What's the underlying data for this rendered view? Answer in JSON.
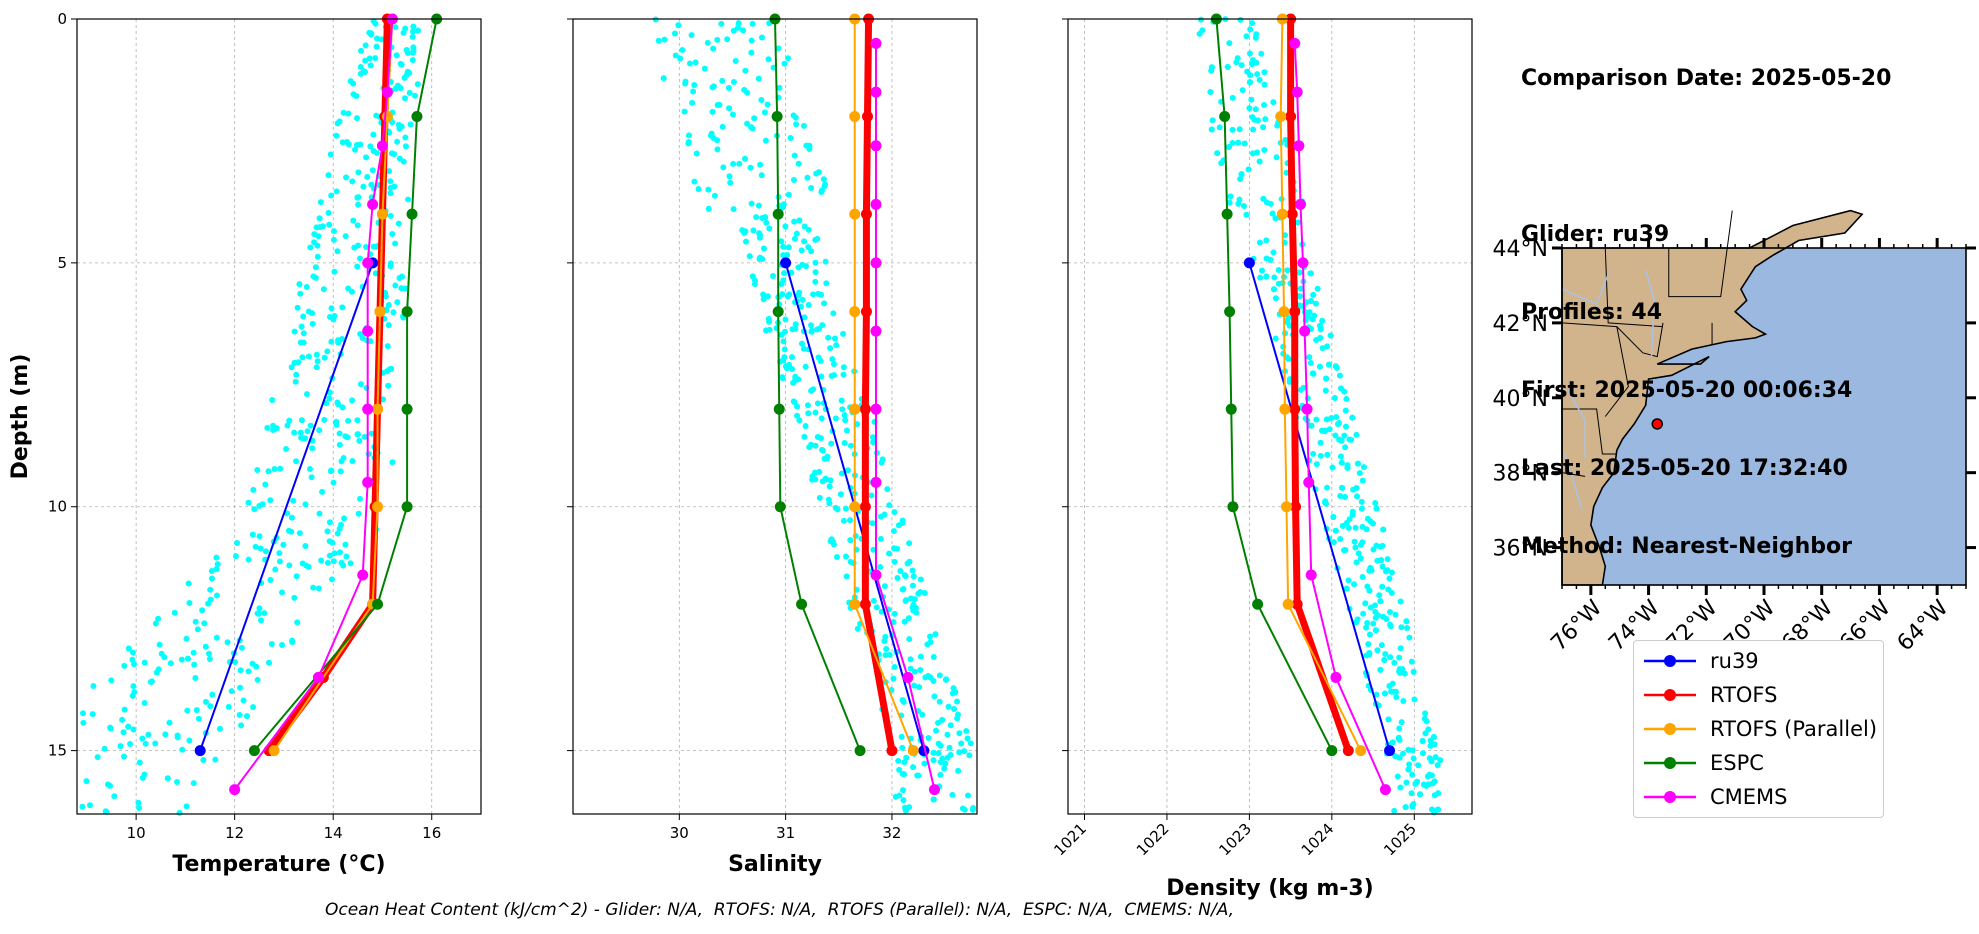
{
  "info": {
    "comparison_date": "Comparison Date: 2025-05-20",
    "glider": "Glider: ru39",
    "profiles": "Profiles: 44",
    "first": "First: 2025-05-20 00:06:34",
    "last": "Last: 2025-05-20 17:32:40",
    "method": "Method: Nearest-Neighbor"
  },
  "footer": "Ocean Heat Content (kJ/cm^2) - Glider: N/A,  RTOFS: N/A,  RTOFS (Parallel): N/A,  ESPC: N/A,  CMEMS: N/A,",
  "legend": [
    {
      "name": "ru39",
      "color": "#0000ff"
    },
    {
      "name": "RTOFS",
      "color": "#ff0000"
    },
    {
      "name": "RTOFS (Parallel)",
      "color": "#ffa500"
    },
    {
      "name": "ESPC",
      "color": "#008000"
    },
    {
      "name": "CMEMS",
      "color": "#ff00ff"
    }
  ],
  "map": {
    "lat_labels": [
      "44°N",
      "42°N",
      "40°N",
      "38°N",
      "36°N"
    ],
    "lat_values": [
      44,
      42,
      40,
      38,
      36
    ],
    "lon_labels": [
      "76°W",
      "74°W",
      "72°W",
      "70°W",
      "68°W",
      "66°W",
      "64°W"
    ],
    "lon_values": [
      -76,
      -74,
      -72,
      -70,
      -68,
      -66,
      -64
    ],
    "extent": {
      "lon": [
        -77,
        -63
      ],
      "lat": [
        35,
        44
      ]
    },
    "glider_position": {
      "lon": -73.7,
      "lat": 39.3
    },
    "land_color": "#d2b48c",
    "ocean_color": "#9bb8e0"
  },
  "chart_data": [
    {
      "type": "line",
      "xlabel": "Temperature (°C)",
      "ylabel": "Depth (m)",
      "xlim": [
        8.8,
        17.0
      ],
      "ylim": [
        16.3,
        0
      ],
      "xticks": [
        10,
        12,
        14,
        16
      ],
      "yticks": [
        0,
        5,
        10,
        15
      ],
      "grid": true,
      "scatter_color": "#00ffff",
      "series": [
        {
          "name": "ru39",
          "color": "#0000ff",
          "width": 2,
          "points": [
            [
              14.8,
              5
            ],
            [
              11.3,
              15
            ]
          ]
        },
        {
          "name": "RTOFS",
          "color": "#ff0000",
          "width": 7,
          "points": [
            [
              15.1,
              0
            ],
            [
              15.05,
              2
            ],
            [
              15.0,
              4
            ],
            [
              14.95,
              6
            ],
            [
              14.9,
              8
            ],
            [
              14.85,
              10
            ],
            [
              14.8,
              12
            ],
            [
              13.8,
              13.5
            ],
            [
              12.7,
              15
            ]
          ]
        },
        {
          "name": "RTOFS (Parallel)",
          "color": "#ffa500",
          "width": 2,
          "points": [
            [
              15.2,
              0
            ],
            [
              15.1,
              2
            ],
            [
              15.0,
              4
            ],
            [
              14.95,
              6
            ],
            [
              14.9,
              8
            ],
            [
              14.9,
              10
            ],
            [
              14.8,
              12
            ],
            [
              12.8,
              15
            ]
          ]
        },
        {
          "name": "ESPC",
          "color": "#008000",
          "width": 2,
          "points": [
            [
              16.1,
              0
            ],
            [
              15.7,
              2
            ],
            [
              15.6,
              4
            ],
            [
              15.5,
              6
            ],
            [
              15.5,
              8
            ],
            [
              15.5,
              10
            ],
            [
              14.9,
              12
            ],
            [
              12.4,
              15
            ]
          ]
        },
        {
          "name": "CMEMS",
          "color": "#ff00ff",
          "width": 2,
          "points": [
            [
              15.2,
              0
            ],
            [
              15.1,
              1.5
            ],
            [
              15.0,
              2.6
            ],
            [
              14.8,
              3.8
            ],
            [
              14.7,
              5
            ],
            [
              14.7,
              6.4
            ],
            [
              14.7,
              8
            ],
            [
              14.7,
              9.5
            ],
            [
              14.6,
              11.4
            ],
            [
              13.7,
              13.5
            ],
            [
              12.0,
              15.8
            ]
          ]
        }
      ],
      "scatter": {
        "seed": 11,
        "count": 520
      }
    },
    {
      "type": "line",
      "xlabel": "Salinity",
      "ylabel": "",
      "xlim": [
        29.0,
        32.8
      ],
      "ylim": [
        16.3,
        0
      ],
      "xticks": [
        30,
        31,
        32
      ],
      "yticks": [
        0,
        5,
        10,
        15
      ],
      "grid": true,
      "scatter_color": "#00ffff",
      "series": [
        {
          "name": "ru39",
          "color": "#0000ff",
          "width": 2,
          "points": [
            [
              31.0,
              5
            ],
            [
              32.3,
              15
            ]
          ]
        },
        {
          "name": "RTOFS",
          "color": "#ff0000",
          "width": 7,
          "points": [
            [
              31.78,
              0
            ],
            [
              31.77,
              2
            ],
            [
              31.76,
              4
            ],
            [
              31.76,
              6
            ],
            [
              31.75,
              8
            ],
            [
              31.75,
              10
            ],
            [
              31.75,
              12
            ],
            [
              32.0,
              15
            ]
          ]
        },
        {
          "name": "RTOFS (Parallel)",
          "color": "#ffa500",
          "width": 2,
          "points": [
            [
              31.65,
              0
            ],
            [
              31.65,
              2
            ],
            [
              31.65,
              4
            ],
            [
              31.65,
              6
            ],
            [
              31.65,
              8
            ],
            [
              31.65,
              10
            ],
            [
              31.65,
              12
            ],
            [
              32.2,
              15
            ]
          ]
        },
        {
          "name": "ESPC",
          "color": "#008000",
          "width": 2,
          "points": [
            [
              30.9,
              0
            ],
            [
              30.92,
              2
            ],
            [
              30.93,
              4
            ],
            [
              30.93,
              6
            ],
            [
              30.94,
              8
            ],
            [
              30.95,
              10
            ],
            [
              31.15,
              12
            ],
            [
              31.7,
              15
            ]
          ]
        },
        {
          "name": "CMEMS",
          "color": "#ff00ff",
          "width": 2,
          "points": [
            [
              31.85,
              0.5
            ],
            [
              31.85,
              1.5
            ],
            [
              31.85,
              2.6
            ],
            [
              31.85,
              3.8
            ],
            [
              31.85,
              5
            ],
            [
              31.85,
              6.4
            ],
            [
              31.85,
              8
            ],
            [
              31.85,
              9.5
            ],
            [
              31.85,
              11.4
            ],
            [
              32.15,
              13.5
            ],
            [
              32.4,
              15.8
            ]
          ]
        }
      ],
      "scatter": {
        "seed": 23,
        "count": 520
      }
    },
    {
      "type": "line",
      "xlabel": "Density (kg m-3)",
      "ylabel": "",
      "xlim": [
        1020.8,
        1025.7
      ],
      "ylim": [
        16.3,
        0
      ],
      "xticks": [
        1021,
        1022,
        1023,
        1024,
        1025
      ],
      "yticks": [
        0,
        5,
        10,
        15
      ],
      "grid": true,
      "scatter_color": "#00ffff",
      "series": [
        {
          "name": "ru39",
          "color": "#0000ff",
          "width": 2,
          "points": [
            [
              1023.0,
              5
            ],
            [
              1024.7,
              15
            ]
          ]
        },
        {
          "name": "RTOFS",
          "color": "#ff0000",
          "width": 7,
          "points": [
            [
              1023.5,
              0
            ],
            [
              1023.5,
              2
            ],
            [
              1023.52,
              4
            ],
            [
              1023.55,
              6
            ],
            [
              1023.55,
              8
            ],
            [
              1023.56,
              10
            ],
            [
              1023.58,
              12
            ],
            [
              1024.2,
              15
            ]
          ]
        },
        {
          "name": "RTOFS (Parallel)",
          "color": "#ffa500",
          "width": 2,
          "points": [
            [
              1023.4,
              0
            ],
            [
              1023.38,
              2
            ],
            [
              1023.4,
              4
            ],
            [
              1023.42,
              6
            ],
            [
              1023.43,
              8
            ],
            [
              1023.45,
              10
            ],
            [
              1023.47,
              12
            ],
            [
              1024.35,
              15
            ]
          ]
        },
        {
          "name": "ESPC",
          "color": "#008000",
          "width": 2,
          "points": [
            [
              1022.6,
              0
            ],
            [
              1022.7,
              2
            ],
            [
              1022.73,
              4
            ],
            [
              1022.76,
              6
            ],
            [
              1022.78,
              8
            ],
            [
              1022.8,
              10
            ],
            [
              1023.1,
              12
            ],
            [
              1024.0,
              15
            ]
          ]
        },
        {
          "name": "CMEMS",
          "color": "#ff00ff",
          "width": 2,
          "points": [
            [
              1023.55,
              0.5
            ],
            [
              1023.58,
              1.5
            ],
            [
              1023.6,
              2.6
            ],
            [
              1023.62,
              3.8
            ],
            [
              1023.65,
              5
            ],
            [
              1023.67,
              6.4
            ],
            [
              1023.7,
              8
            ],
            [
              1023.72,
              9.5
            ],
            [
              1023.75,
              11.4
            ],
            [
              1024.05,
              13.5
            ],
            [
              1024.65,
              15.8
            ]
          ]
        }
      ],
      "scatter": {
        "seed": 37,
        "count": 520
      }
    }
  ]
}
